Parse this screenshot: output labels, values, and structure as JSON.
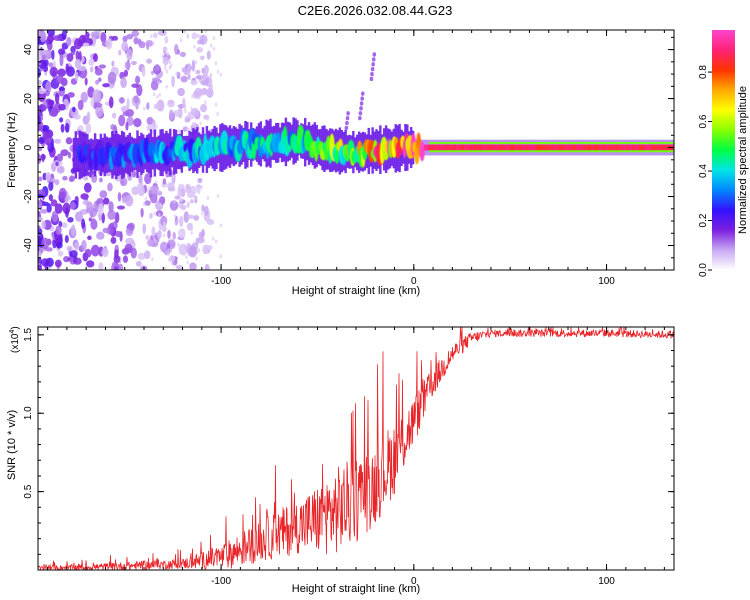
{
  "title": "C2E6.2026.032.08.44.G23",
  "chart_data": [
    {
      "type": "heatmap",
      "xlabel": "Height of straight line (km)",
      "ylabel": "Frequency (Hz)",
      "xlim": [
        -195,
        135
      ],
      "ylim": [
        -50,
        48
      ],
      "x_ticks": [
        -100,
        0,
        100
      ],
      "y_ticks": [
        -40,
        -20,
        0,
        20,
        40
      ],
      "colorbar": {
        "label": "Normalized spectral amplitude",
        "range": [
          0.0,
          0.97
        ],
        "ticks": [
          0.0,
          0.2,
          0.4,
          0.6,
          0.8
        ],
        "tick_labels": [
          "0.0",
          "0.2",
          "0.4",
          "0.6",
          "0.8"
        ],
        "colors": [
          "#ffffff",
          "#c9a8f2",
          "#7a1fe0",
          "#3311ff",
          "#0088ff",
          "#00e6e6",
          "#00ff44",
          "#88ff00",
          "#ffff00",
          "#ffaa00",
          "#ff3300",
          "#ff2277",
          "#ff44cc"
        ]
      },
      "ridge": [
        {
          "x": -170,
          "center_hz": -3,
          "amplitude": 0.28
        },
        {
          "x": -150,
          "center_hz": -3,
          "amplitude": 0.33
        },
        {
          "x": -130,
          "center_hz": -2,
          "amplitude": 0.38
        },
        {
          "x": -110,
          "center_hz": -1,
          "amplitude": 0.42
        },
        {
          "x": -90,
          "center_hz": 1,
          "amplitude": 0.45
        },
        {
          "x": -70,
          "center_hz": 2,
          "amplitude": 0.48
        },
        {
          "x": -60,
          "center_hz": 3,
          "amplitude": 0.45
        },
        {
          "x": -45,
          "center_hz": -1,
          "amplitude": 0.55
        },
        {
          "x": -30,
          "center_hz": -2,
          "amplitude": 0.7
        },
        {
          "x": -20,
          "center_hz": -1,
          "amplitude": 0.85
        },
        {
          "x": -5,
          "center_hz": 0,
          "amplitude": 0.95
        },
        {
          "x": 10,
          "center_hz": 0,
          "amplitude": 0.92
        },
        {
          "x": 40,
          "center_hz": 0,
          "amplitude": 0.9
        },
        {
          "x": 80,
          "center_hz": 0,
          "amplitude": 0.9
        },
        {
          "x": 135,
          "center_hz": 0,
          "amplitude": 0.9
        }
      ]
    },
    {
      "type": "line",
      "xlabel": "Height of straight line (km)",
      "ylabel": "SNR (10 * v/v)",
      "y_multiplier_label": "(x10",
      "y_multiplier_exp": "4",
      "y_multiplier_close": ")",
      "xlim": [
        -195,
        135
      ],
      "ylim": [
        0,
        1.55
      ],
      "x_ticks": [
        -100,
        0,
        100
      ],
      "y_ticks": [
        0.5,
        1.0,
        1.5
      ],
      "y_tick_labels": [
        "0.5",
        "1.0",
        "1.5"
      ],
      "color": "#e8262a",
      "series": [
        {
          "name": "SNR",
          "x": [
            -195,
            -160,
            -120,
            -100,
            -90,
            -80,
            -70,
            -60,
            -50,
            -40,
            -30,
            -20,
            -10,
            0,
            10,
            20,
            30,
            40,
            60,
            100,
            135
          ],
          "mean": [
            0.01,
            0.02,
            0.04,
            0.08,
            0.13,
            0.18,
            0.23,
            0.28,
            0.32,
            0.38,
            0.45,
            0.55,
            0.72,
            0.95,
            1.2,
            1.38,
            1.48,
            1.51,
            1.51,
            1.51,
            1.5
          ],
          "spread": [
            0.02,
            0.03,
            0.04,
            0.1,
            0.14,
            0.16,
            0.2,
            0.22,
            0.28,
            0.35,
            0.35,
            0.33,
            0.3,
            0.2,
            0.12,
            0.08,
            0.05,
            0.03,
            0.03,
            0.03,
            0.03
          ]
        }
      ]
    }
  ]
}
